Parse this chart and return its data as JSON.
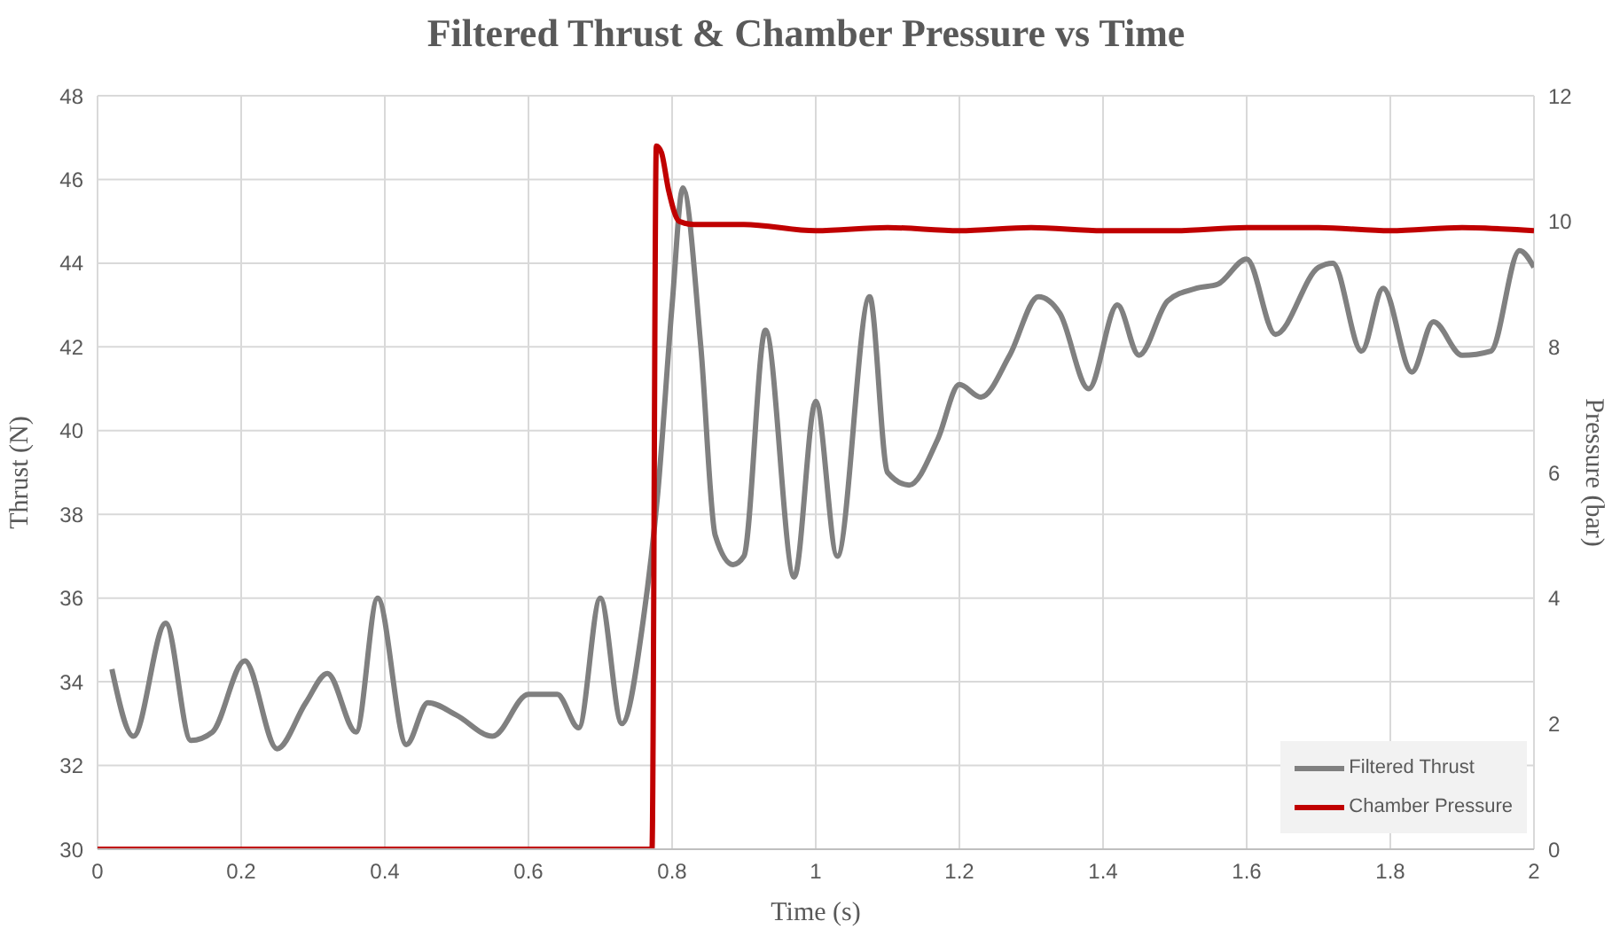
{
  "chart_data": {
    "type": "line",
    "title": "Filtered Thrust & Chamber Pressure vs Time",
    "xlabel": "Time (s)",
    "ylabel": "Thrust (N)",
    "y2label": "Pressure (bar)",
    "xlim": [
      0,
      2
    ],
    "xticks": [
      0,
      0.2,
      0.4,
      0.6,
      0.8,
      1,
      1.2,
      1.4,
      1.6,
      1.8,
      2
    ],
    "ylim": [
      30,
      48
    ],
    "yticks": [
      30,
      32,
      34,
      36,
      38,
      40,
      42,
      44,
      46,
      48
    ],
    "y2lim": [
      0,
      12
    ],
    "y2ticks": [
      0,
      2,
      4,
      6,
      8,
      10,
      12
    ],
    "grid": true,
    "legend": "bottom right",
    "marker": "none",
    "line_style": "solid",
    "series": [
      {
        "name": "Filtered Thrust",
        "color": "#808080",
        "x": [
          0.02,
          0.05,
          0.095,
          0.13,
          0.16,
          0.205,
          0.25,
          0.29,
          0.32,
          0.36,
          0.39,
          0.43,
          0.46,
          0.5,
          0.55,
          0.6,
          0.64,
          0.67,
          0.7,
          0.73,
          0.76,
          0.78,
          0.8,
          0.815,
          0.84,
          0.86,
          0.885,
          0.9,
          0.93,
          0.97,
          1.0,
          1.03,
          1.075,
          1.1,
          1.13,
          1.17,
          1.2,
          1.23,
          1.27,
          1.31,
          1.34,
          1.38,
          1.42,
          1.45,
          1.49,
          1.53,
          1.56,
          1.6,
          1.64,
          1.7,
          1.72,
          1.76,
          1.79,
          1.83,
          1.86,
          1.9,
          1.94,
          1.98,
          2.0
        ],
        "values": [
          34.3,
          32.7,
          35.4,
          32.6,
          32.8,
          34.5,
          32.4,
          33.5,
          34.2,
          32.8,
          36.0,
          32.5,
          33.5,
          33.2,
          32.7,
          33.7,
          33.7,
          32.9,
          36.0,
          33.0,
          35.5,
          38.5,
          43.0,
          45.8,
          42.0,
          37.5,
          36.8,
          37.0,
          42.4,
          36.5,
          40.7,
          37.0,
          43.2,
          39.0,
          38.7,
          39.8,
          41.1,
          40.8,
          41.8,
          43.2,
          42.8,
          41.0,
          43.0,
          41.8,
          43.1,
          43.4,
          43.5,
          44.1,
          42.3,
          43.9,
          44.0,
          41.9,
          43.4,
          41.4,
          42.6,
          41.8,
          41.9,
          44.3,
          43.9
        ]
      },
      {
        "name": "Chamber Pressure",
        "color": "#c00000",
        "axis": "y2",
        "x": [
          0,
          0.772,
          0.778,
          0.785,
          0.795,
          0.81,
          0.83,
          0.9,
          1.0,
          1.1,
          1.2,
          1.3,
          1.4,
          1.5,
          1.6,
          1.7,
          1.8,
          1.9,
          2.0
        ],
        "values": [
          0,
          0,
          11.2,
          11.1,
          10.5,
          10.0,
          9.95,
          9.95,
          9.85,
          9.9,
          9.85,
          9.9,
          9.85,
          9.85,
          9.9,
          9.9,
          9.85,
          9.9,
          9.85
        ]
      }
    ]
  }
}
